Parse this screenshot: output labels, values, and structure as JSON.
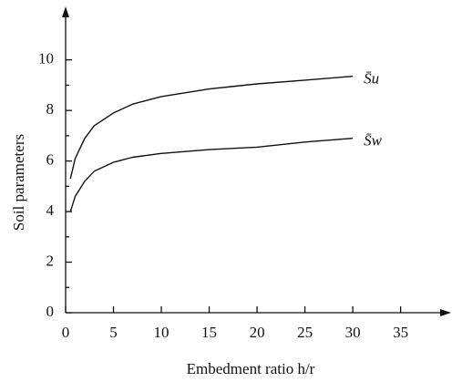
{
  "chart_data": {
    "type": "line",
    "xlabel": "Embedment ratio h/r",
    "ylabel": "Soil parameters",
    "x": [
      0.5,
      1,
      2,
      3,
      5,
      7,
      10,
      15,
      20,
      25,
      30
    ],
    "series": [
      {
        "name": "S̄u",
        "color": "#111111",
        "values": [
          5.3,
          6.1,
          6.9,
          7.4,
          7.9,
          8.25,
          8.55,
          8.85,
          9.05,
          9.2,
          9.35
        ]
      },
      {
        "name": "S̄w",
        "color": "#111111",
        "values": [
          4.0,
          4.6,
          5.2,
          5.6,
          5.95,
          6.15,
          6.3,
          6.45,
          6.55,
          6.75,
          6.9
        ]
      }
    ],
    "xlim": [
      0,
      39.7
    ],
    "ylim": [
      0,
      11.9
    ],
    "xticks": [
      0,
      5,
      10,
      15,
      20,
      25,
      30,
      35
    ],
    "yticks": [
      0,
      2,
      4,
      6,
      8,
      10
    ],
    "yminorticks": [
      1,
      3,
      5,
      7,
      9
    ],
    "grid": false
  }
}
